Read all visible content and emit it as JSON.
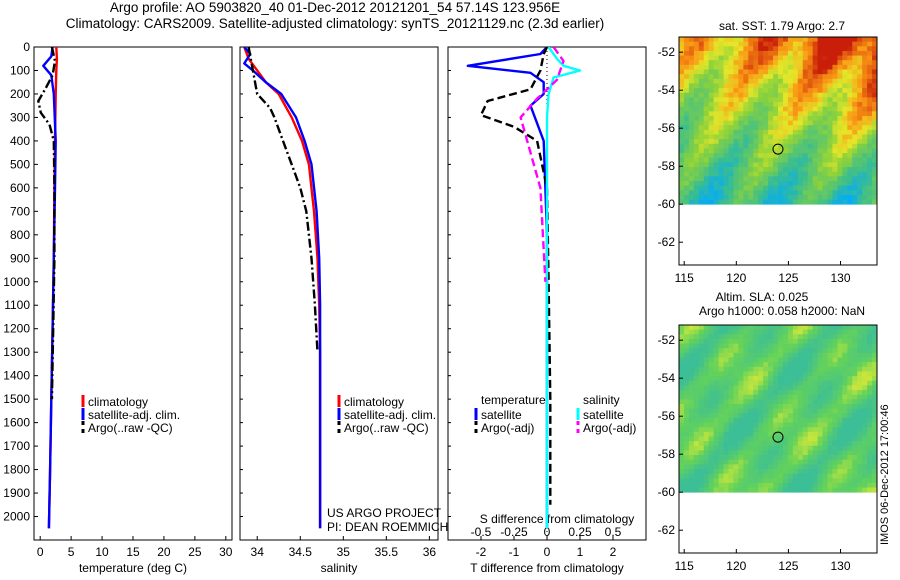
{
  "title": {
    "line1": "Argo profile: AO 5903820_40 01-Dec-2012 20121201_54 57.14S 123.956E",
    "line2": "Climatology: CARS2009. Satellite-adjusted climatology: synTS_20121129.nc (2.3d earlier)"
  },
  "colors": {
    "climatology": "#ff0000",
    "satellite": "#0000ff",
    "argo": "#000000",
    "sal_satellite": "#00ffff",
    "sal_argo": "#ff00ff"
  },
  "credit": {
    "line1": "US ARGO PROJECT",
    "line2": "PI: DEAN ROEMMICH"
  },
  "watermark": "IMOS 06-Dec-2012 17:00:46",
  "chart_data": [
    {
      "type": "line",
      "xlabel": "temperature (deg C)",
      "ylabel": "",
      "xlim": [
        -1,
        31
      ],
      "ylim": [
        2100,
        0
      ],
      "xticks": [
        0,
        5,
        10,
        15,
        20,
        25,
        30
      ],
      "yticks": [
        0,
        100,
        200,
        300,
        400,
        500,
        600,
        700,
        800,
        900,
        1000,
        1100,
        1200,
        1300,
        1400,
        1500,
        1600,
        1700,
        1800,
        1900,
        2000
      ],
      "legend": [
        "climatology",
        "satellite-adj. clim.",
        "Argo(..raw -QC)"
      ],
      "series": [
        {
          "name": "climatology",
          "style": "solid",
          "x": [
            2.6,
            2.7,
            2.6,
            2.5,
            2.4,
            2.3,
            2.2,
            2.0,
            1.8,
            1.6,
            1.4
          ],
          "y": [
            0,
            50,
            100,
            200,
            400,
            600,
            900,
            1200,
            1500,
            1800,
            2050
          ]
        },
        {
          "name": "satellite-adj. clim.",
          "style": "solid",
          "x": [
            2.0,
            1.8,
            0.5,
            1.8,
            2.2,
            2.5,
            2.4,
            2.2,
            2.0,
            1.8,
            1.6,
            1.4
          ],
          "y": [
            0,
            40,
            80,
            120,
            200,
            400,
            600,
            900,
            1200,
            1500,
            1800,
            2050
          ]
        },
        {
          "name": "Argo(..raw -QC)",
          "style": "dashdot",
          "x": [
            1.9,
            2.4,
            2.0,
            0.8,
            -0.3,
            0.1,
            1.5,
            2.2,
            2.3,
            2.3,
            2.1,
            1.9
          ],
          "y": [
            0,
            60,
            120,
            180,
            230,
            280,
            330,
            400,
            600,
            900,
            1200,
            1500
          ]
        }
      ]
    },
    {
      "type": "line",
      "xlabel": "salinity",
      "ylabel": "",
      "xlim": [
        33.8,
        36.1
      ],
      "ylim": [
        2100,
        0
      ],
      "xticks": [
        34,
        34.5,
        35,
        35.5,
        36
      ],
      "legend": [
        "climatology",
        "satellite-adj. clim.",
        "Argo(..raw -QC)"
      ],
      "series": [
        {
          "name": "climatology",
          "style": "solid",
          "x": [
            33.85,
            33.9,
            34.0,
            34.1,
            34.25,
            34.4,
            34.52,
            34.6,
            34.66,
            34.7,
            34.72,
            34.73,
            34.73
          ],
          "y": [
            0,
            50,
            100,
            150,
            200,
            300,
            400,
            500,
            700,
            900,
            1100,
            1300,
            2050
          ]
        },
        {
          "name": "satellite-adj. clim.",
          "style": "solid",
          "x": [
            33.85,
            33.92,
            33.85,
            33.95,
            34.1,
            34.28,
            34.45,
            34.55,
            34.63,
            34.69,
            34.72,
            34.73,
            34.73
          ],
          "y": [
            0,
            30,
            70,
            100,
            150,
            200,
            300,
            400,
            500,
            700,
            900,
            1100,
            2050
          ]
        },
        {
          "name": "Argo(..raw -QC)",
          "style": "dashdot",
          "x": [
            33.9,
            33.95,
            34.0,
            34.15,
            34.2,
            34.3,
            34.4,
            34.5,
            34.57,
            34.63,
            34.67,
            34.7
          ],
          "y": [
            0,
            100,
            200,
            260,
            300,
            400,
            500,
            600,
            700,
            900,
            1100,
            1300
          ]
        }
      ]
    },
    {
      "type": "line",
      "xlabel": "T difference from climatology",
      "xlabel_top": "S difference from climatology",
      "ylabel": "",
      "xlim": [
        -3,
        3
      ],
      "xticks": [
        -2,
        -1,
        0,
        1,
        2
      ],
      "xticks_S": [
        "-0.5",
        "-0.25",
        "0",
        "0.25",
        "0.5"
      ],
      "ylim": [
        2100,
        0
      ],
      "legend_headers": [
        "temperature",
        "salinity"
      ],
      "legend": [
        "satellite",
        "Argo(-adj)",
        "satellite",
        "Argo(-adj)"
      ],
      "series": [
        {
          "name": "temperature satellite",
          "style": "solid",
          "x": [
            0,
            -0.2,
            -2.4,
            -0.5,
            -0.1,
            -0.1,
            -0.5,
            -0.1,
            0,
            0
          ],
          "y": [
            0,
            30,
            80,
            110,
            150,
            200,
            250,
            400,
            800,
            2050
          ]
        },
        {
          "name": "temperature Argo(-adj)",
          "style": "dashed",
          "x": [
            0,
            -0.1,
            -0.2,
            -0.5,
            -1.8,
            -2.0,
            -1.0,
            -0.3,
            0,
            0.05,
            0.1,
            0.1
          ],
          "y": [
            0,
            30,
            100,
            180,
            230,
            290,
            340,
            400,
            600,
            1000,
            1500,
            1950
          ]
        },
        {
          "name": "salinity satellite",
          "style": "solid",
          "x": [
            0.05,
            0.3,
            0.5,
            1.0,
            0.2,
            0.05,
            0,
            0
          ],
          "y": [
            0,
            50,
            80,
            100,
            130,
            200,
            300,
            2050
          ]
        },
        {
          "name": "salinity Argo(-adj)",
          "style": "dashed",
          "x": [
            0.2,
            0.5,
            0.3,
            -0.3,
            -0.8,
            -0.6,
            -0.2,
            -0.05
          ],
          "y": [
            0,
            60,
            140,
            220,
            300,
            400,
            600,
            1000
          ]
        }
      ]
    },
    {
      "type": "heatmap",
      "title": "sat. SST: 1.79 Argo: 2.7",
      "xlim": [
        114.5,
        133.5
      ],
      "ylim": [
        -63.2,
        -51.2
      ],
      "xticks": [
        115,
        120,
        125,
        130
      ],
      "yticks": [
        -52,
        -54,
        -56,
        -58,
        -60,
        -62
      ],
      "marker": {
        "x": 124,
        "y": -57.1
      },
      "data_extent_y": [
        -60,
        -51.2
      ]
    },
    {
      "type": "heatmap",
      "title": "Altim. SLA: 0.025",
      "subtitle": "Argo h1000: 0.058 h2000: NaN",
      "xlim": [
        114.5,
        133.5
      ],
      "ylim": [
        -63.2,
        -51.2
      ],
      "xticks": [
        115,
        120,
        125,
        130
      ],
      "yticks": [
        -52,
        -54,
        -56,
        -58,
        -60,
        -62
      ],
      "marker": {
        "x": 124,
        "y": -57.1
      },
      "data_extent_y": [
        -60,
        -51.2
      ]
    }
  ]
}
